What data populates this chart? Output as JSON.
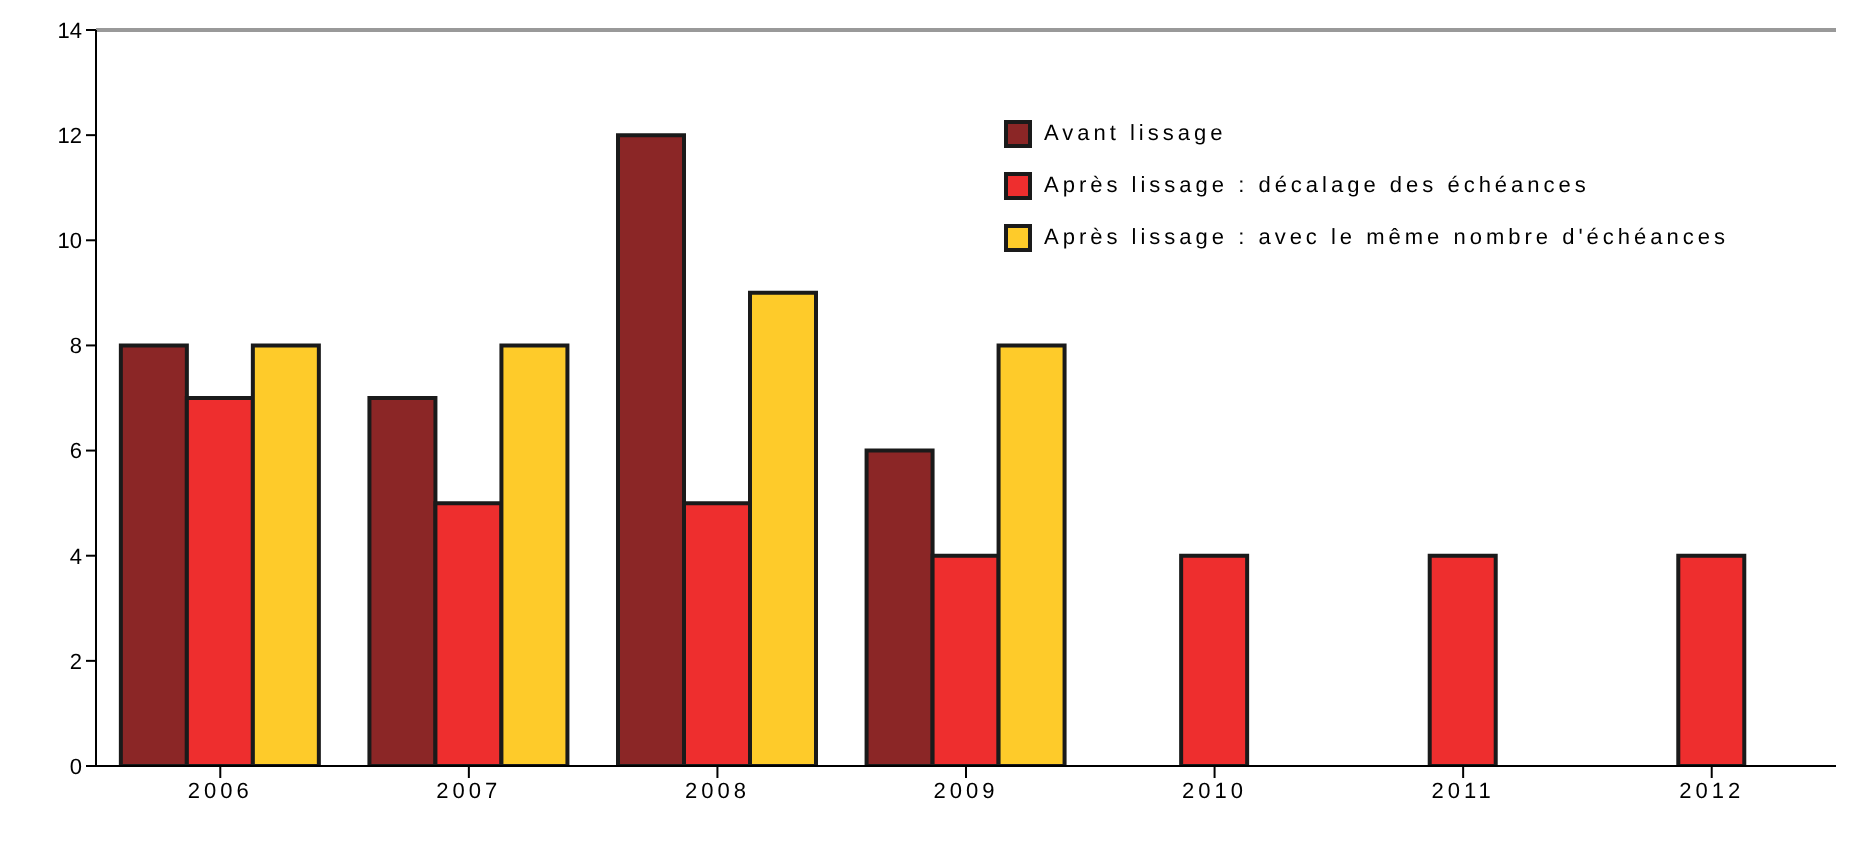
{
  "chart_data": {
    "type": "bar",
    "categories": [
      "2006",
      "2007",
      "2008",
      "2009",
      "2010",
      "2011",
      "2012"
    ],
    "series": [
      {
        "name": "Avant lissage",
        "color": "#8b2626",
        "values": [
          8,
          7,
          12,
          6,
          null,
          null,
          null
        ]
      },
      {
        "name": "Après lissage : décalage des échéances",
        "color": "#ee2e2e",
        "values": [
          7,
          5,
          5,
          4,
          4,
          4,
          4
        ]
      },
      {
        "name": "Après lissage : avec le même nombre d'échéances",
        "color": "#fecb2a",
        "values": [
          8,
          8,
          9,
          8,
          null,
          null,
          null
        ]
      }
    ],
    "ylim": [
      0,
      14
    ],
    "yticks": [
      0,
      2,
      4,
      6,
      8,
      10,
      12,
      14
    ],
    "legend": "top right"
  }
}
